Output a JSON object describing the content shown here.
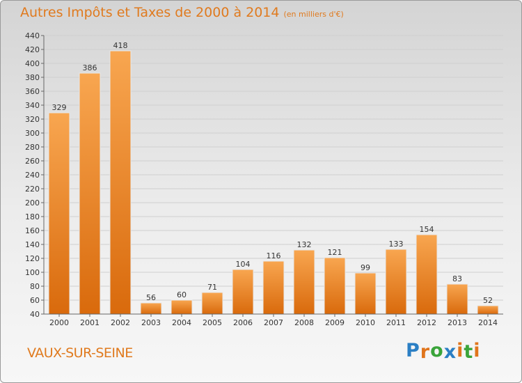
{
  "header": {
    "title": "Autres Impôts et Taxes de 2000 à 2014",
    "unit": "(en milliers d'€)"
  },
  "footer": {
    "commune": "VAUX-SUR-SEINE",
    "logo": "Proxiti",
    "logo_letters": [
      "P",
      "r",
      "o",
      "x",
      "i",
      "t",
      "i"
    ],
    "logo_colors": [
      "#2b7fc4",
      "#e0751c",
      "#3aa43a",
      "#2b7fc4",
      "#e0751c",
      "#3aa43a",
      "#e0751c"
    ]
  },
  "colors": {
    "bar_light": "#f8a650",
    "bar_dark": "#d96a0c",
    "title": "#e07a1e",
    "grid": "#cfcfcf",
    "axis": "#666666"
  },
  "chart_data": {
    "type": "bar",
    "categories": [
      "2000",
      "2001",
      "2002",
      "2003",
      "2004",
      "2005",
      "2006",
      "2007",
      "2008",
      "2009",
      "2010",
      "2011",
      "2012",
      "2013",
      "2014"
    ],
    "values": [
      329,
      386,
      418,
      56,
      60,
      71,
      104,
      116,
      132,
      121,
      99,
      133,
      154,
      83,
      52
    ],
    "ylim": [
      40,
      440
    ],
    "ytick_step": 20,
    "grid": true,
    "xlabel": "",
    "ylabel": ""
  }
}
